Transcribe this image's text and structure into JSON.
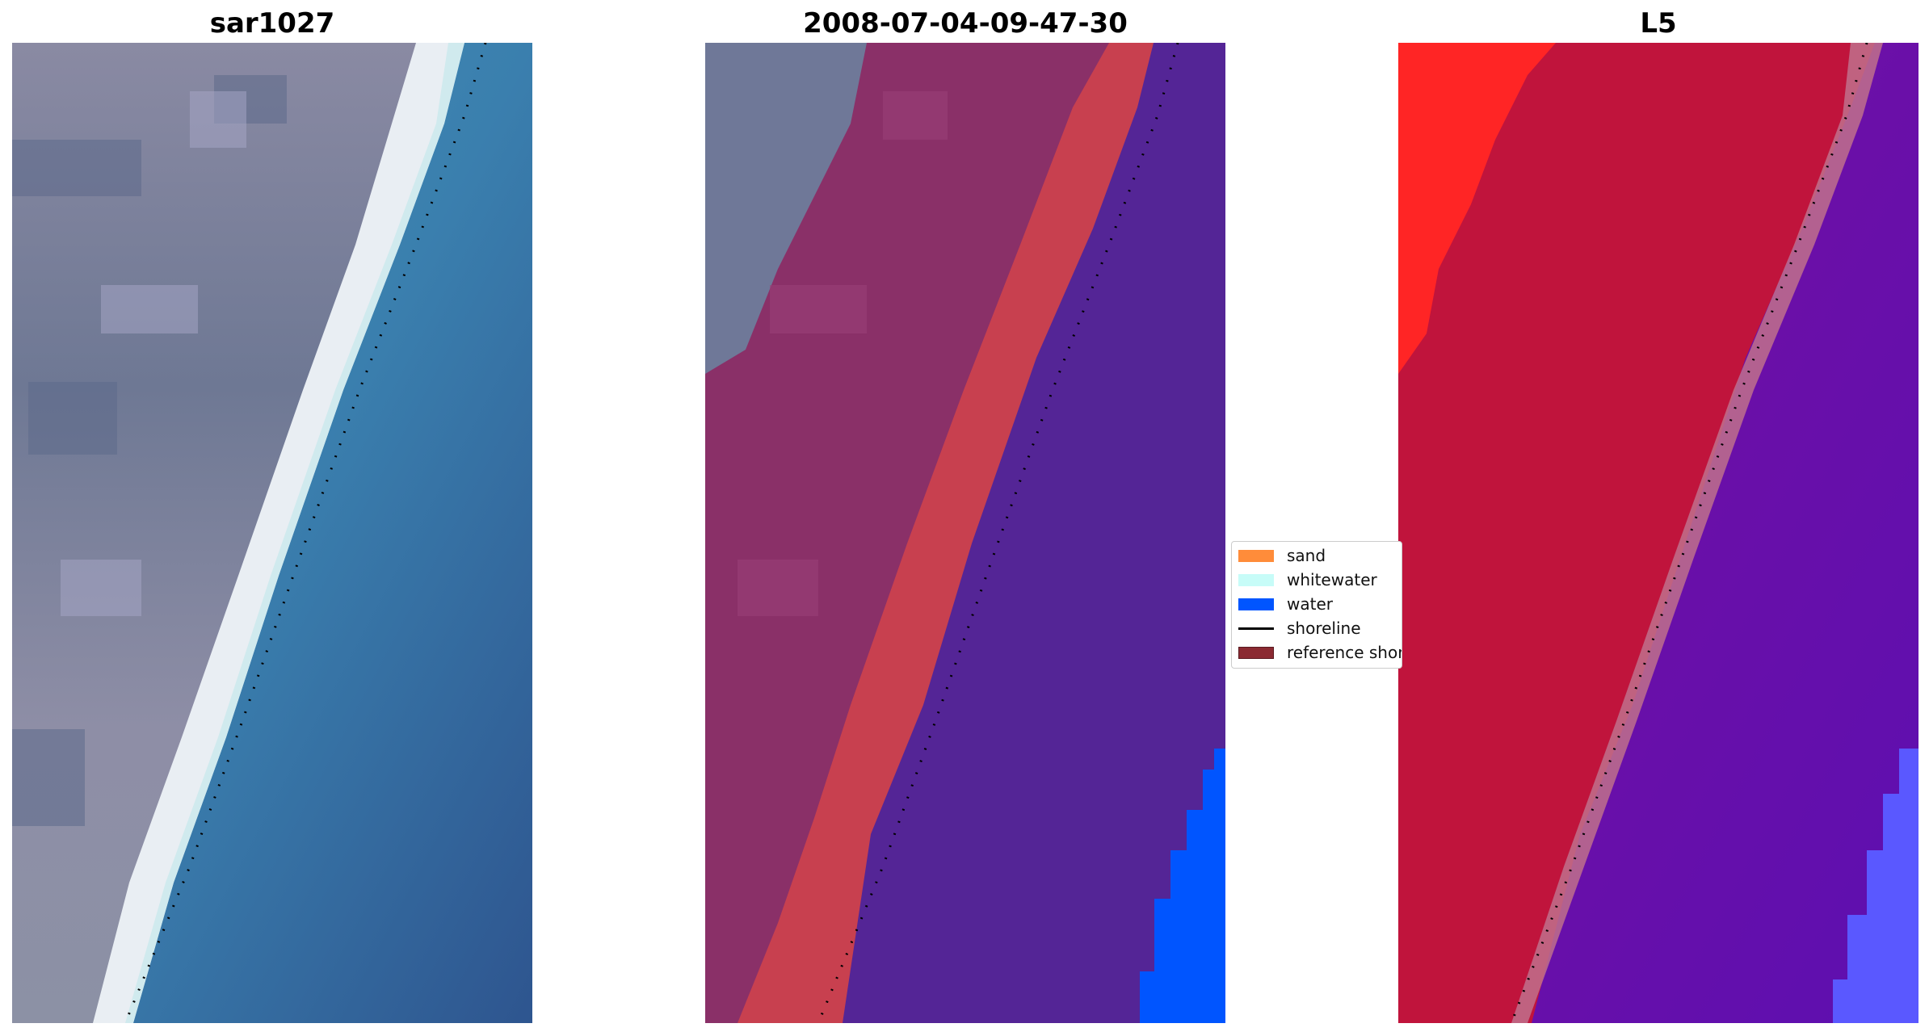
{
  "panels": [
    {
      "title": "sar1027"
    },
    {
      "title": "2008-07-04-09-47-30"
    },
    {
      "title": "L5"
    }
  ],
  "legend": {
    "items": [
      {
        "label": "sand",
        "kind": "patch",
        "color": "#ff8c3a"
      },
      {
        "label": "whitewater",
        "kind": "patch",
        "color": "#c7fcf8"
      },
      {
        "label": "water",
        "kind": "patch",
        "color": "#0055ff"
      },
      {
        "label": "shoreline",
        "kind": "line",
        "color": "#000000"
      },
      {
        "label": "reference shoreline",
        "kind": "patch",
        "color": "#8b2a32"
      }
    ]
  },
  "colors": {
    "land_rgb": "#7e7f9e",
    "beach_rgb": "#e9eef3",
    "sea_rgb": "#3e7fae",
    "land_classified": "#8a3068",
    "sand_classified": "#c8404f",
    "water_classified": "#542596",
    "water_edge": "#0055ff",
    "land_index": "#c0143c",
    "land_index_bright": "#ff2525",
    "water_index": "#6a0fa8"
  }
}
